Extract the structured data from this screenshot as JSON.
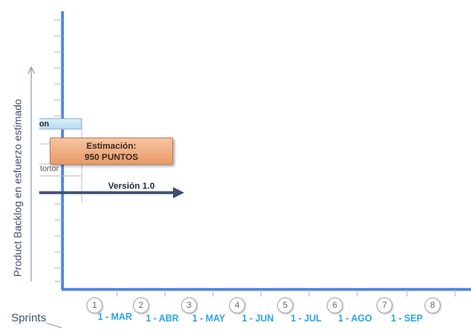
{
  "y_axis_label": "Product Backlog en esfuerzo estimado",
  "x_axis_label": "Sprints",
  "backlog_header": "on",
  "backlog_row_text": "tortor",
  "estimate": {
    "line1": "Estimación:",
    "line2": "950 PUNTOS"
  },
  "version_label": "Versión 1.0",
  "sprints": [
    {
      "number": "1",
      "date": "1 - MAR"
    },
    {
      "number": "2",
      "date": "1 - ABR"
    },
    {
      "number": "3",
      "date": "1 - MAY"
    },
    {
      "number": "4",
      "date": "1 - JUN"
    },
    {
      "number": "5",
      "date": "1 - JUL"
    },
    {
      "number": "6",
      "date": "1 - AGO"
    },
    {
      "number": "7",
      "date": "1 - SEP"
    },
    {
      "number": "8",
      "date": ""
    }
  ],
  "colors": {
    "axis": "#4a84e0",
    "arrow": "#3d4f72",
    "date_label": "#2aa3e6",
    "estimate_fill": "#eba37a"
  }
}
